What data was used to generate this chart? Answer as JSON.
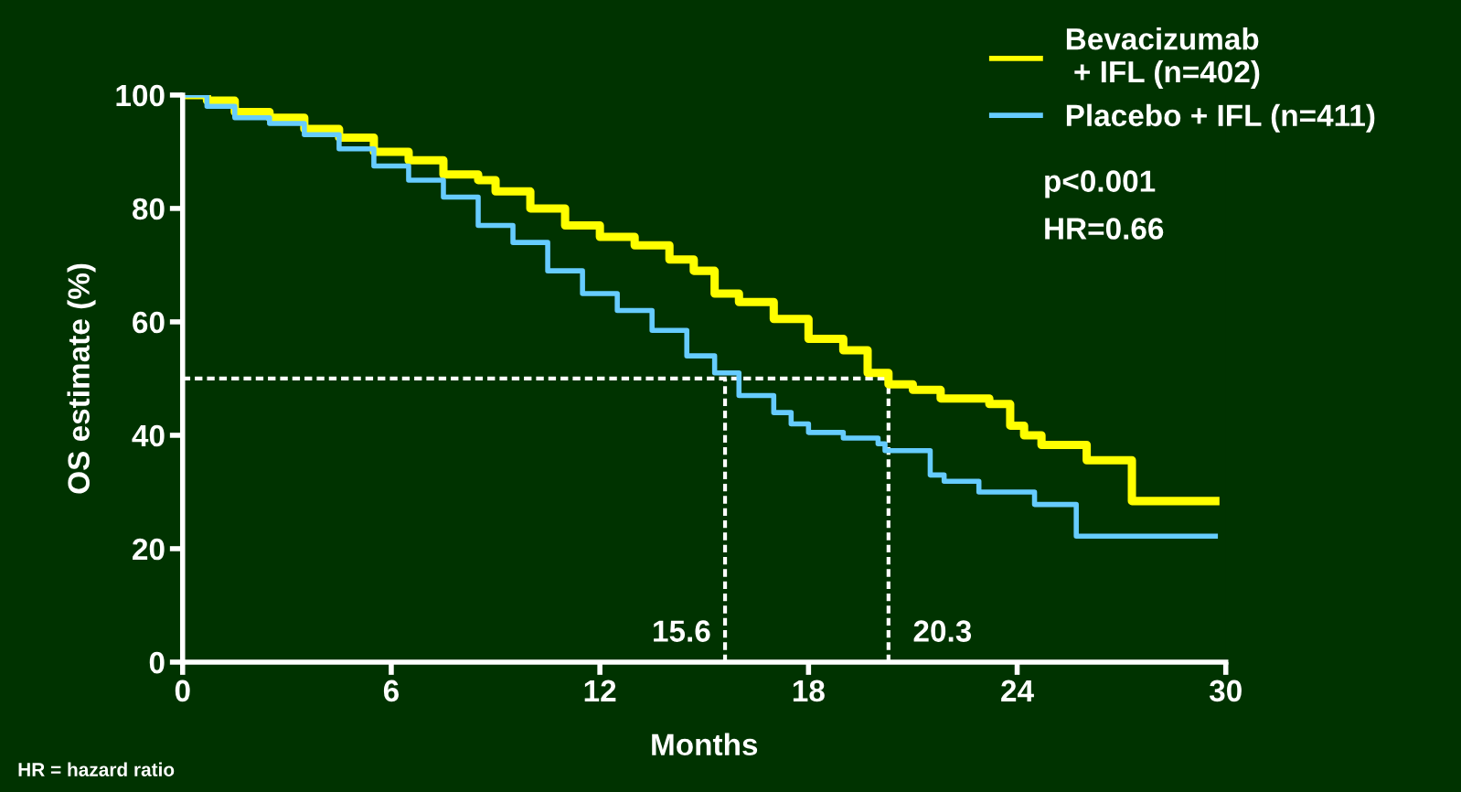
{
  "chart_data": {
    "type": "step",
    "xlabel": "Months",
    "ylabel": "OS estimate (%)",
    "xlim": [
      0,
      30
    ],
    "ylim": [
      0,
      100
    ],
    "xticks": [
      0,
      6,
      12,
      18,
      24,
      30
    ],
    "yticks": [
      0,
      20,
      40,
      60,
      80,
      100
    ],
    "grid": false,
    "legend": "top right",
    "line_style": "solid",
    "series": [
      {
        "name": "Bevacizumab\n + IFL (n=402)",
        "color": "#ffff00",
        "x": [
          0,
          0.7,
          1.5,
          2.5,
          3.5,
          4.5,
          5.5,
          6.5,
          7.5,
          8.5,
          9,
          10,
          11,
          12,
          13,
          14,
          14.7,
          15.3,
          16,
          17,
          18,
          19,
          19.7,
          20.3,
          21,
          21.8,
          23.2,
          23.8,
          24.2,
          24.7,
          26.0,
          27.3,
          29.7
        ],
        "values": [
          100,
          99,
          97,
          96,
          94,
          92.5,
          90,
          88.5,
          86,
          85,
          83,
          80,
          77,
          75,
          73.5,
          71,
          69,
          65,
          63.5,
          60.5,
          57,
          55,
          51,
          49,
          48,
          46.5,
          45.5,
          41.7,
          40,
          38.3,
          35.6,
          28.4,
          28.4
        ]
      },
      {
        "name": "Placebo + IFL (n=411)",
        "color": "#66ccff",
        "x": [
          0,
          0.7,
          1.5,
          2.5,
          3.5,
          4.5,
          5.5,
          6.5,
          7.5,
          8.5,
          9.5,
          10.5,
          11.5,
          12.5,
          13.5,
          14.5,
          15.3,
          16,
          17,
          17.5,
          18,
          19,
          20,
          20.2,
          21.5,
          21.9,
          22.9,
          24.5,
          25.7,
          29.7
        ],
        "values": [
          100,
          98,
          96,
          95,
          93,
          90.5,
          87.5,
          85,
          82,
          77,
          74,
          69,
          65,
          62,
          58.5,
          54,
          51,
          47,
          44,
          42,
          40.5,
          39.5,
          38.5,
          37.3,
          33,
          31.9,
          30,
          27.8,
          22.2,
          22.2
        ]
      }
    ],
    "ref_lines": [
      {
        "axis": "y",
        "value": 50,
        "label": null,
        "color": "#ffffff",
        "line_style": "dashed"
      },
      {
        "axis": "x",
        "value": 15.6,
        "label": "15.6",
        "color": "#ffffff",
        "line_style": "dashed"
      },
      {
        "axis": "x",
        "value": 20.3,
        "label": "20.3",
        "color": "#ffffff",
        "line_style": "dashed"
      }
    ],
    "annotations": [
      "p<0.001",
      "HR=0.66",
      "HR = hazard ratio"
    ]
  }
}
